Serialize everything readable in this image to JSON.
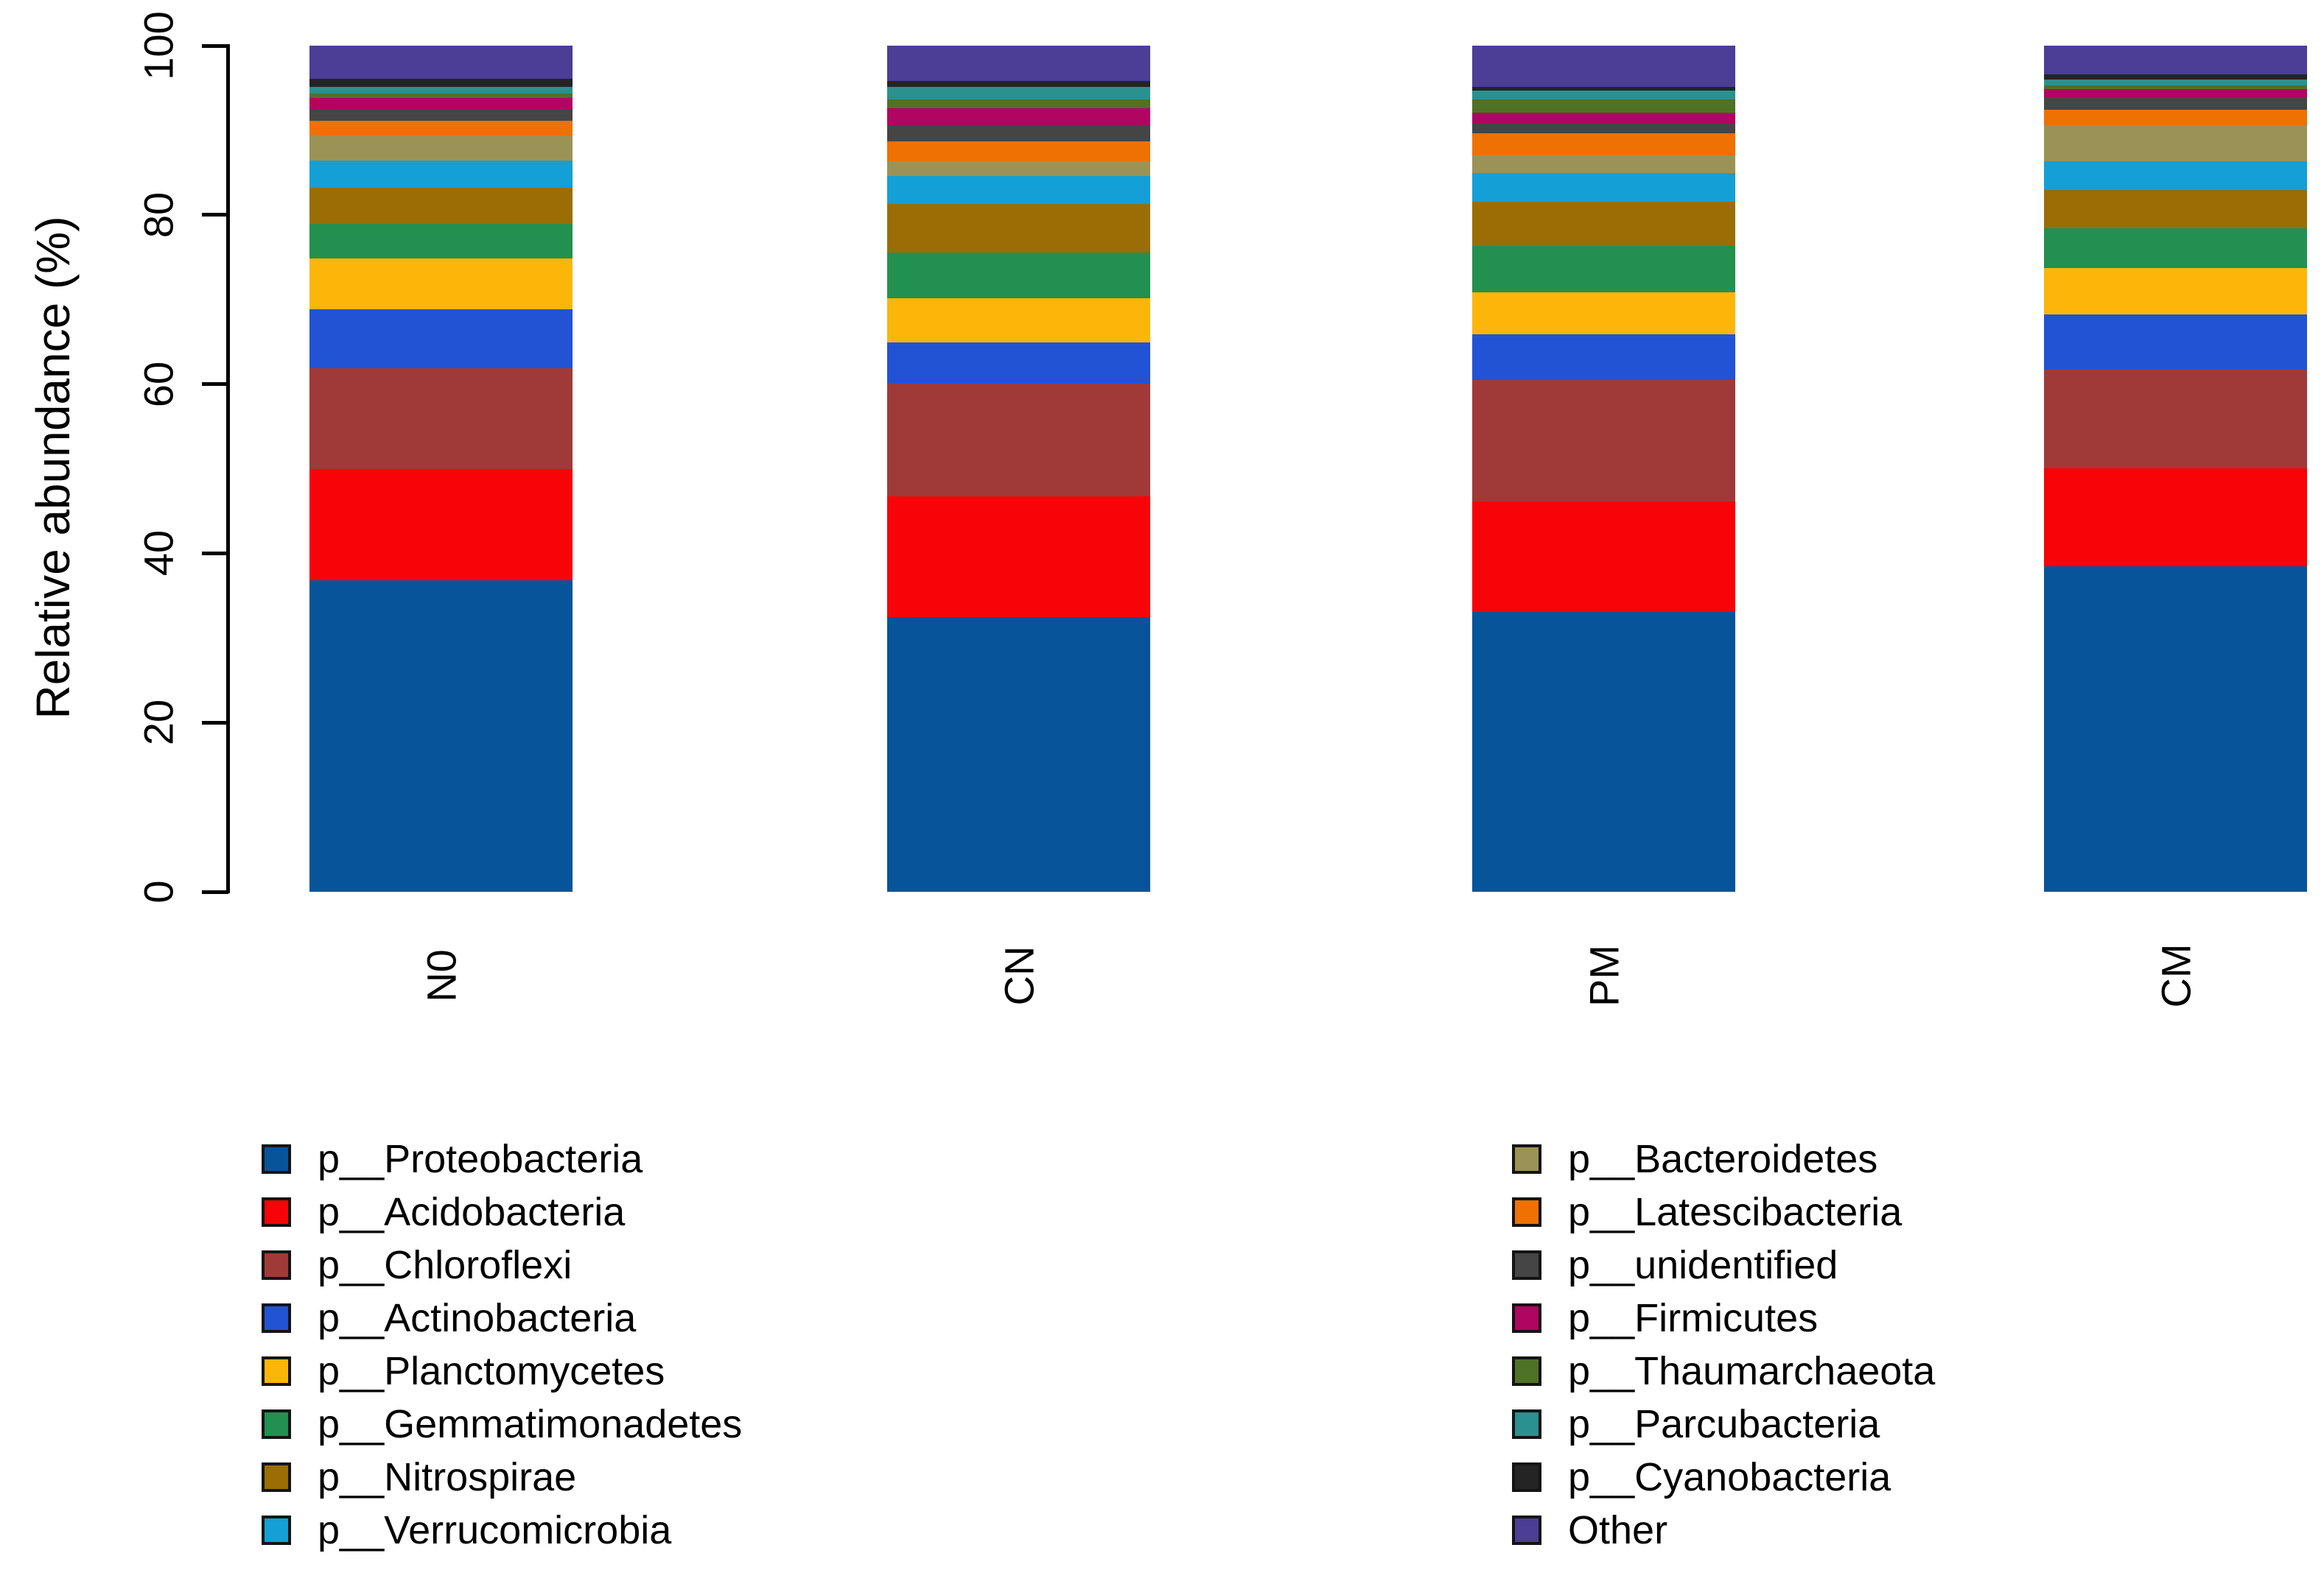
{
  "chart_data": {
    "type": "bar",
    "stacked": true,
    "title": "",
    "xlabel": "",
    "ylabel": "Relative abundance (%)",
    "ylim": [
      0,
      100
    ],
    "yticks": [
      0,
      20,
      40,
      60,
      80,
      100
    ],
    "grid": false,
    "legend_position": "bottom-two-columns",
    "categories": [
      "N0",
      "CN",
      "PM",
      "CM"
    ],
    "series": [
      {
        "name": "p__Proteobacteria",
        "color": "#07549b",
        "values": [
          36.8,
          32.5,
          33.1,
          38.5
        ]
      },
      {
        "name": "p__Acidobacteria",
        "color": "#f60408",
        "values": [
          13.2,
          14.3,
          13.1,
          11.6
        ]
      },
      {
        "name": "p__Chloroflexi",
        "color": "#a03a38",
        "values": [
          11.9,
          13.3,
          14.3,
          11.7
        ]
      },
      {
        "name": "p__Actinobacteria",
        "color": "#2253d4",
        "values": [
          7.0,
          4.9,
          5.4,
          6.5
        ]
      },
      {
        "name": "p__Planctomycetes",
        "color": "#fcb60a",
        "values": [
          6.0,
          5.2,
          5.0,
          5.5
        ]
      },
      {
        "name": "p__Gemmatimonadetes",
        "color": "#22904f",
        "values": [
          4.1,
          5.4,
          5.5,
          4.7
        ]
      },
      {
        "name": "p__Nitrospirae",
        "color": "#9a6e04",
        "values": [
          4.3,
          5.8,
          5.2,
          4.5
        ]
      },
      {
        "name": "p__Verrucomicrobia",
        "color": "#149fd7",
        "values": [
          3.2,
          3.3,
          3.4,
          3.4
        ]
      },
      {
        "name": "p__Bacteroidetes",
        "color": "#9b9355",
        "values": [
          3.0,
          1.7,
          2.1,
          4.3
        ]
      },
      {
        "name": "p__Latescibacteria",
        "color": "#ef7102",
        "values": [
          1.7,
          2.4,
          2.6,
          1.8
        ]
      },
      {
        "name": "p__unidentified",
        "color": "#454545",
        "values": [
          1.3,
          1.8,
          1.2,
          1.5
        ]
      },
      {
        "name": "p__Firmicutes",
        "color": "#b00560",
        "values": [
          1.4,
          2.1,
          1.3,
          1.0
        ]
      },
      {
        "name": "p__Thaumarchaeota",
        "color": "#4e7226",
        "values": [
          0.5,
          1.0,
          1.5,
          0.4
        ]
      },
      {
        "name": "p__Parcubacteria",
        "color": "#2a9090",
        "values": [
          0.8,
          1.5,
          1.1,
          0.7
        ]
      },
      {
        "name": "p__Cyanobacteria",
        "color": "#242424",
        "values": [
          1.0,
          0.7,
          0.4,
          0.6
        ]
      },
      {
        "name": "Other",
        "color": "#4c3d96",
        "values": [
          3.9,
          4.2,
          4.9,
          3.4
        ]
      }
    ],
    "legend_columns": [
      [
        0,
        1,
        2,
        3,
        4,
        5,
        6,
        7
      ],
      [
        8,
        9,
        10,
        11,
        12,
        13,
        14,
        15
      ]
    ]
  }
}
